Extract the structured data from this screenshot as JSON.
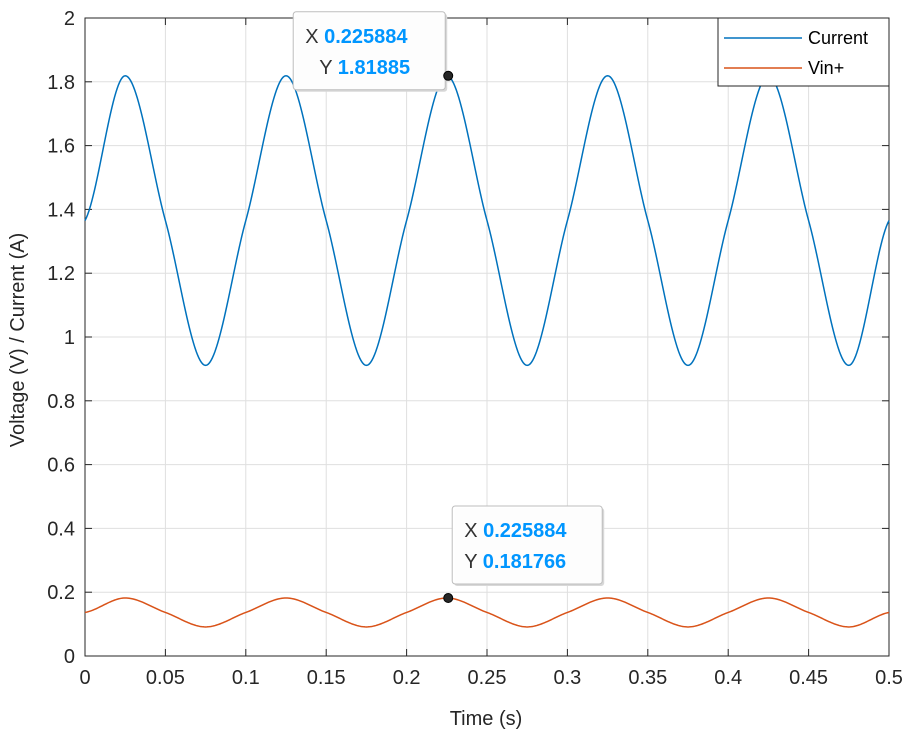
{
  "chart_data": {
    "type": "line",
    "xlabel": "Time (s)",
    "ylabel": "Voltage (V) / Current (A)",
    "xlim": [
      0,
      0.5
    ],
    "ylim": [
      0,
      2
    ],
    "xticks": [
      "0",
      "0.05",
      "0.1",
      "0.15",
      "0.2",
      "0.25",
      "0.3",
      "0.35",
      "0.4",
      "0.45",
      "0.5"
    ],
    "yticks": [
      "0",
      "0.2",
      "0.4",
      "0.6",
      "0.8",
      "1",
      "1.2",
      "1.4",
      "1.6",
      "1.8",
      "2"
    ],
    "grid": true,
    "legend_position": "top-right",
    "series": [
      {
        "name": "Current",
        "color": "#0072bd",
        "x": [
          0,
          0.025,
          0.05,
          0.075,
          0.1,
          0.125,
          0.15,
          0.175,
          0.2,
          0.225,
          0.25,
          0.275,
          0.3,
          0.325,
          0.35,
          0.375,
          0.4,
          0.425,
          0.45,
          0.475,
          0.5
        ],
        "y": [
          1.365,
          1.819,
          1.365,
          0.911,
          1.365,
          1.819,
          1.365,
          0.911,
          1.365,
          1.819,
          1.365,
          0.911,
          1.365,
          1.819,
          1.365,
          0.911,
          1.365,
          1.819,
          1.365,
          0.911,
          1.365
        ]
      },
      {
        "name": "Vin+",
        "color": "#d95319",
        "x": [
          0,
          0.025,
          0.05,
          0.075,
          0.1,
          0.125,
          0.15,
          0.175,
          0.2,
          0.225,
          0.25,
          0.275,
          0.3,
          0.325,
          0.35,
          0.375,
          0.4,
          0.425,
          0.45,
          0.475,
          0.5
        ],
        "y": [
          0.1365,
          0.1819,
          0.1365,
          0.0911,
          0.1365,
          0.1819,
          0.1365,
          0.0911,
          0.1365,
          0.1819,
          0.1365,
          0.0911,
          0.1365,
          0.1819,
          0.1365,
          0.0911,
          0.1365,
          0.1819,
          0.1365,
          0.0911,
          0.1365
        ]
      }
    ],
    "datatips": [
      {
        "x": 0.225884,
        "y": 1.81885,
        "x_label": "X",
        "y_label": "Y",
        "x_text": "0.225884",
        "y_text": "1.81885"
      },
      {
        "x": 0.225884,
        "y": 0.181766,
        "x_label": "X",
        "y_label": "Y",
        "x_text": "0.225884",
        "y_text": "0.181766"
      }
    ]
  }
}
